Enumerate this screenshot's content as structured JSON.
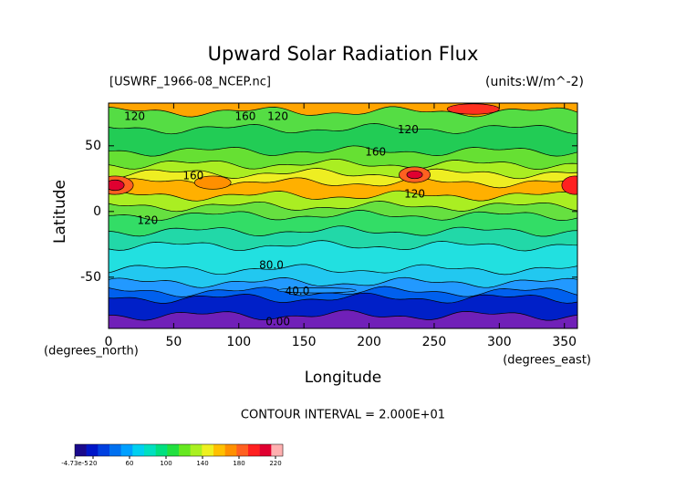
{
  "chart_data": {
    "type": "contour",
    "title": "Upward Solar Radiation Flux",
    "subtitle": "[USWRF_1966-08_NCEP.nc]",
    "units": "(units:W/m^-2)",
    "x_label": "Longitude",
    "x_unit": "(degrees_east)",
    "y_label": "Latitude",
    "y_unit": "(degrees_north)",
    "note": "CONTOUR INTERVAL = 2.000E+01",
    "xlim": [
      0,
      360
    ],
    "xticks": [
      0,
      50,
      100,
      150,
      200,
      250,
      300,
      350
    ],
    "ylim": [
      -89,
      82.5
    ],
    "yticks": [
      -50,
      0,
      50
    ],
    "contour_labels": [
      "120",
      "160",
      "120",
      "120",
      "160",
      "160",
      "120",
      "120",
      "80.0",
      "40.0",
      "0.00"
    ],
    "colorbar": {
      "lim": [
        0,
        228
      ],
      "ticks": [
        {
          "value": -4.73e-05,
          "label": "-4.73e-5"
        },
        20,
        60,
        100,
        140,
        180,
        220
      ],
      "colors": [
        "#1a0a8c",
        "#0016c8",
        "#0040e0",
        "#0070f0",
        "#00a0ff",
        "#00d0f0",
        "#00e0c0",
        "#00e080",
        "#22e040",
        "#66e820",
        "#aaf020",
        "#eef020",
        "#ffc000",
        "#ff9000",
        "#ff6020",
        "#ff2020",
        "#e00030",
        "#ffb0b0"
      ]
    }
  }
}
